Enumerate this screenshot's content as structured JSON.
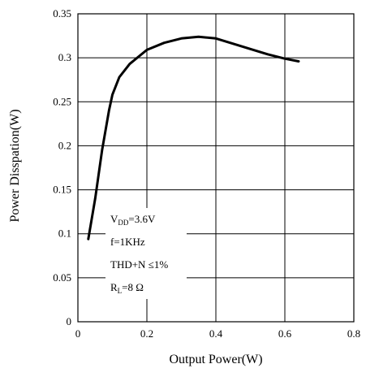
{
  "chart_data": {
    "type": "line",
    "xlabel": "Output Power(W)",
    "ylabel": "Power Disspation(W)",
    "xlim": [
      0,
      0.8
    ],
    "ylim": [
      0,
      0.35
    ],
    "x_ticks": [
      "0",
      "0.2",
      "0.4",
      "0.6",
      "0.8"
    ],
    "y_ticks": [
      "0",
      "0.05",
      "0.1",
      "0.15",
      "0.2",
      "0.25",
      "0.3",
      "0.35"
    ],
    "grid": true,
    "series": [
      {
        "points": [
          [
            0.03,
            0.094
          ],
          [
            0.05,
            0.14
          ],
          [
            0.07,
            0.195
          ],
          [
            0.09,
            0.24
          ],
          [
            0.1,
            0.258
          ],
          [
            0.12,
            0.278
          ],
          [
            0.15,
            0.293
          ],
          [
            0.2,
            0.309
          ],
          [
            0.25,
            0.317
          ],
          [
            0.3,
            0.322
          ],
          [
            0.35,
            0.324
          ],
          [
            0.4,
            0.322
          ],
          [
            0.45,
            0.316
          ],
          [
            0.5,
            0.31
          ],
          [
            0.55,
            0.304
          ],
          [
            0.6,
            0.299
          ],
          [
            0.64,
            0.296
          ]
        ]
      }
    ],
    "annotations": {
      "vdd_main": "V",
      "vdd_sub": "DD",
      "vdd_value": "=3.6V",
      "freq": "f=1KHz",
      "thd": "THD+N ≤1%",
      "rl_main": "R",
      "rl_sub": "L",
      "rl_value": "=8 Ω"
    }
  }
}
